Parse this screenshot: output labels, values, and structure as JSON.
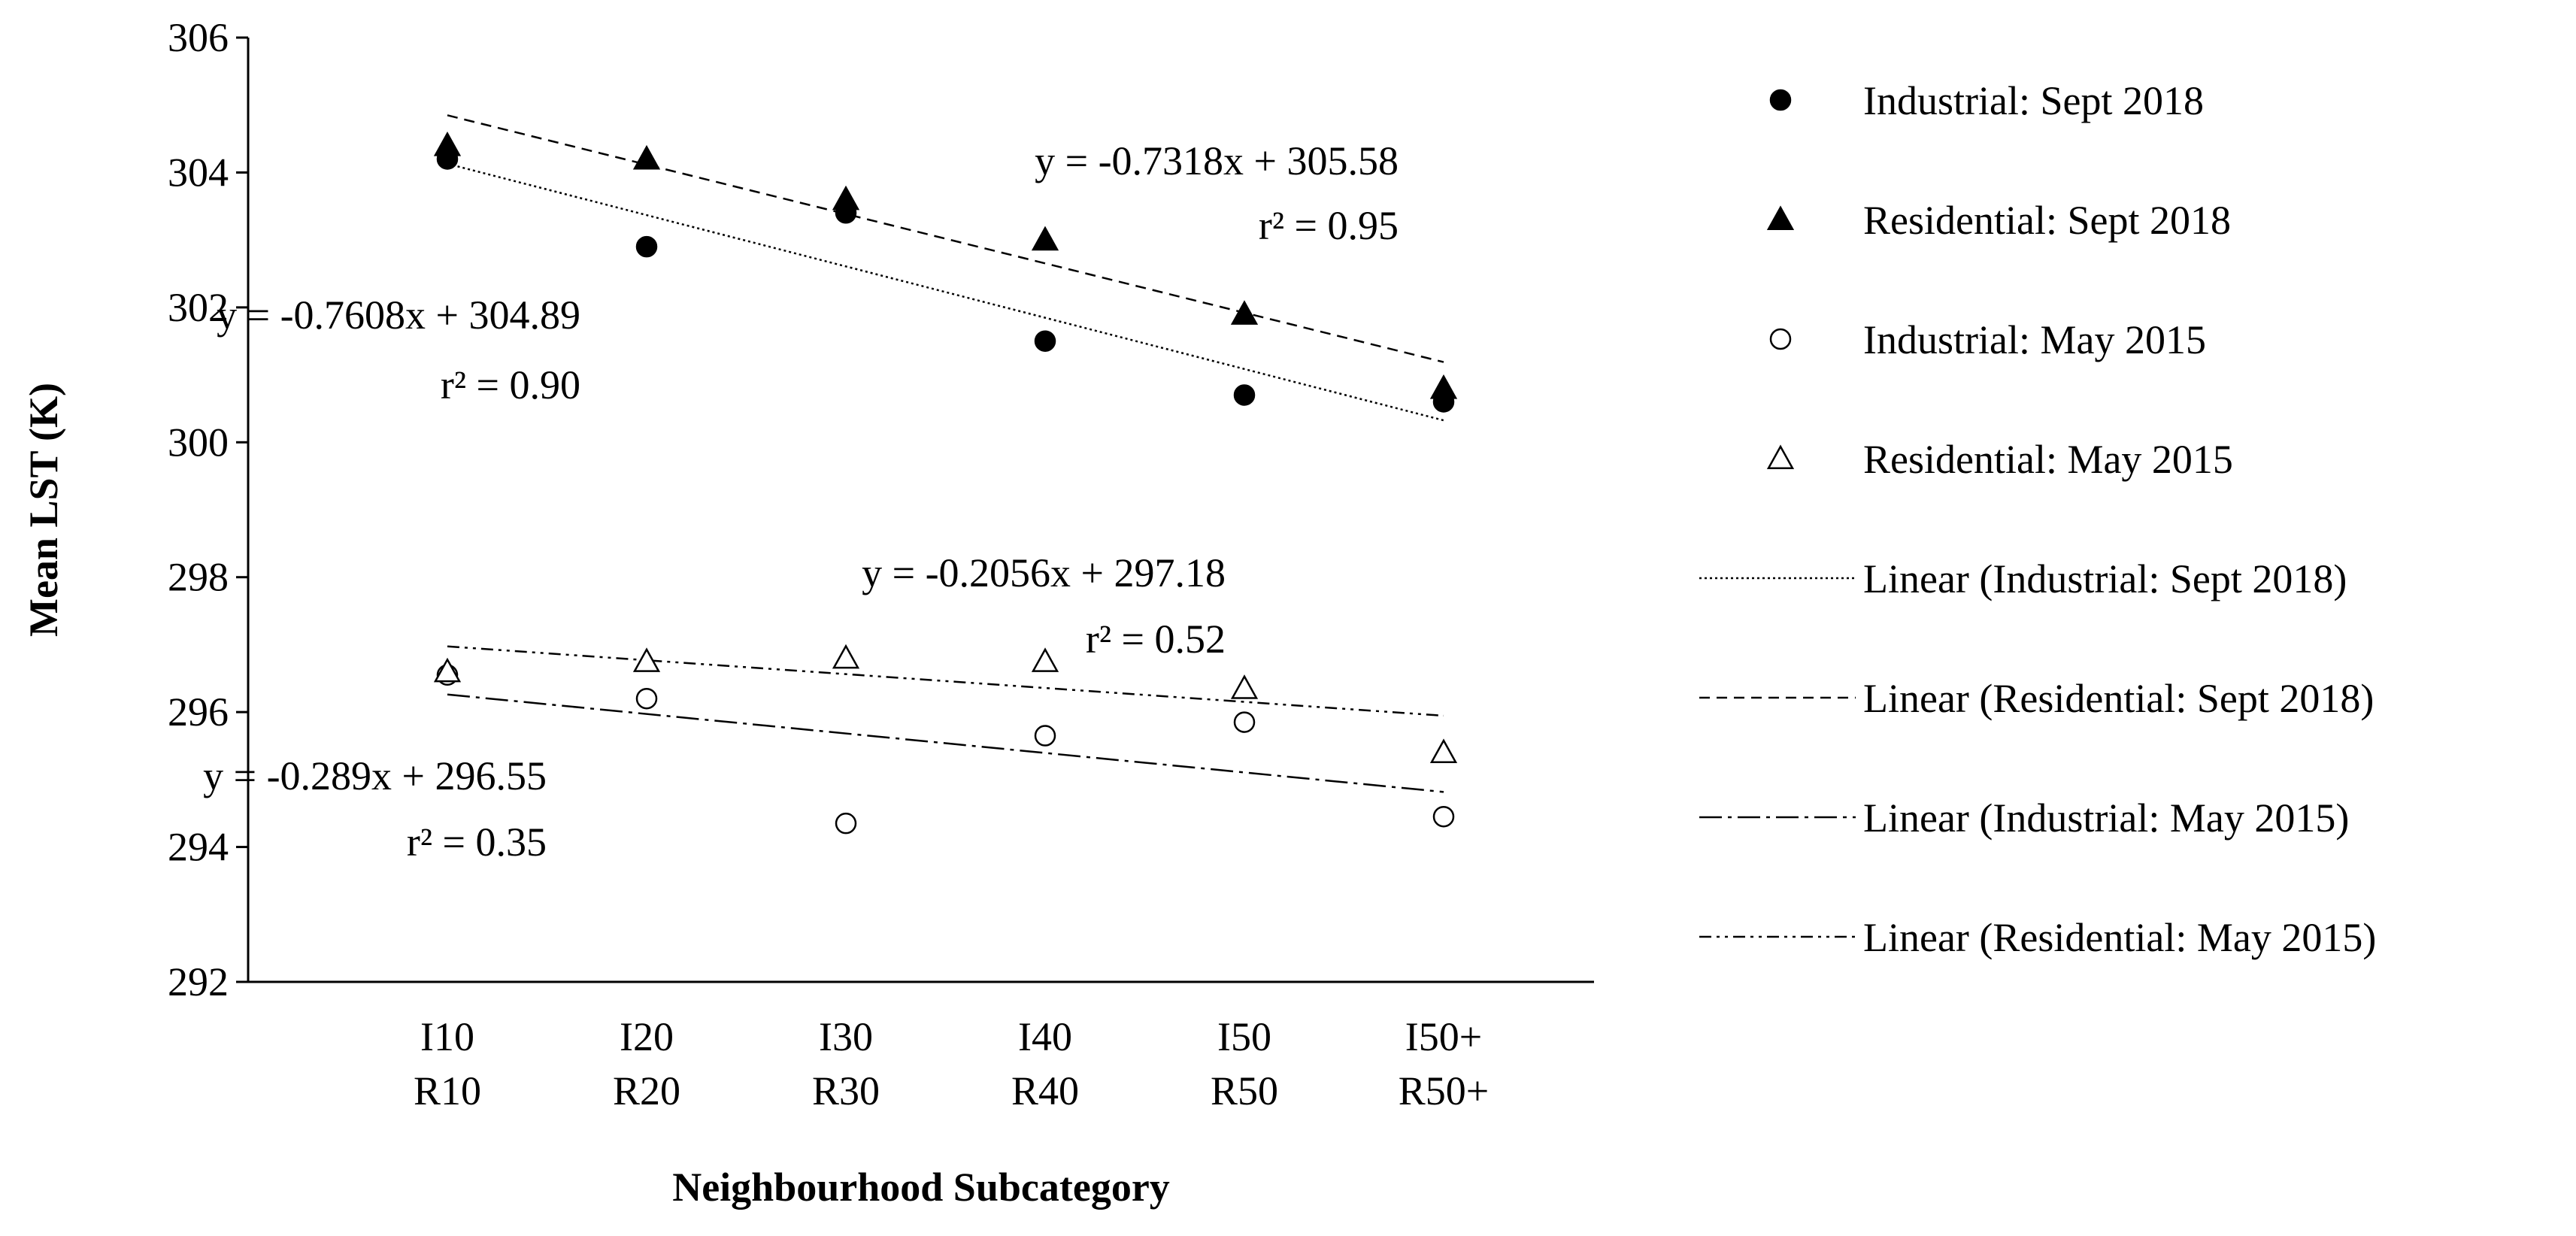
{
  "chart_data": {
    "type": "scatter",
    "title": "",
    "xlabel": "Neighbourhood Subcategory",
    "ylabel": "Mean LST (K)",
    "ylim": [
      292,
      306
    ],
    "yticks": [
      "292",
      "294",
      "296",
      "298",
      "300",
      "302",
      "304",
      "306"
    ],
    "categories": [
      {
        "top": "I10",
        "bottom": "R10"
      },
      {
        "top": "I20",
        "bottom": "R20"
      },
      {
        "top": "I30",
        "bottom": "R30"
      },
      {
        "top": "I40",
        "bottom": "R40"
      },
      {
        "top": "I50",
        "bottom": "R50"
      },
      {
        "top": "I50+",
        "bottom": "R50+"
      }
    ],
    "series": [
      {
        "name": "Industrial: Sept 2018",
        "marker": "circle-filled",
        "values": [
          304.2,
          302.9,
          303.4,
          301.5,
          300.7,
          300.6
        ]
      },
      {
        "name": "Residential: Sept 2018",
        "marker": "triangle-filled",
        "values": [
          304.4,
          304.2,
          303.6,
          303.0,
          301.9,
          300.8
        ]
      },
      {
        "name": "Industrial: May 2015",
        "marker": "circle-open",
        "values": [
          296.55,
          296.2,
          294.35,
          295.65,
          295.85,
          294.45
        ]
      },
      {
        "name": "Residential: May 2015",
        "marker": "triangle-open",
        "values": [
          296.6,
          296.75,
          296.8,
          296.75,
          296.35,
          295.4
        ]
      }
    ],
    "trendlines": [
      {
        "name": "Linear (Industrial: Sept 2018)",
        "slope": -0.7608,
        "intercept": 304.89,
        "dash": "dotted"
      },
      {
        "name": "Linear (Residential: Sept 2018)",
        "slope": -0.7318,
        "intercept": 305.58,
        "dash": "dashed"
      },
      {
        "name": "Linear (Industrial: May 2015)",
        "slope": -0.289,
        "intercept": 296.55,
        "dash": "long-dash-dot"
      },
      {
        "name": "Linear (Residential: May 2015)",
        "slope": -0.2056,
        "intercept": 297.18,
        "dash": "dash-dot-dot"
      }
    ],
    "annotations": [
      {
        "id": "res-sept",
        "equation": "y = -0.7318x + 305.58",
        "r2": "r² = 0.95"
      },
      {
        "id": "ind-sept",
        "equation": "y = -0.7608x + 304.89",
        "r2": "r² = 0.90"
      },
      {
        "id": "res-may",
        "equation": "y = -0.2056x + 297.18",
        "r2": "r² = 0.52"
      },
      {
        "id": "ind-may",
        "equation": "y = -0.289x + 296.55",
        "r2": "r² = 0.35"
      }
    ],
    "legend": [
      {
        "label": "Industrial: Sept 2018",
        "symbol": "circle-filled"
      },
      {
        "label": "Residential: Sept 2018",
        "symbol": "triangle-filled"
      },
      {
        "label": "Industrial: May 2015",
        "symbol": "circle-open"
      },
      {
        "label": "Residential: May 2015",
        "symbol": "triangle-open"
      },
      {
        "label": "Linear (Industrial: Sept 2018)",
        "symbol": "line-dotted"
      },
      {
        "label": "Linear (Residential: Sept 2018)",
        "symbol": "line-dashed"
      },
      {
        "label": "Linear (Industrial: May 2015)",
        "symbol": "line-long-dash-dot"
      },
      {
        "label": "Linear (Residential: May 2015)",
        "symbol": "line-dash-dot-dot"
      }
    ],
    "legend_position": "right",
    "grid": false
  }
}
